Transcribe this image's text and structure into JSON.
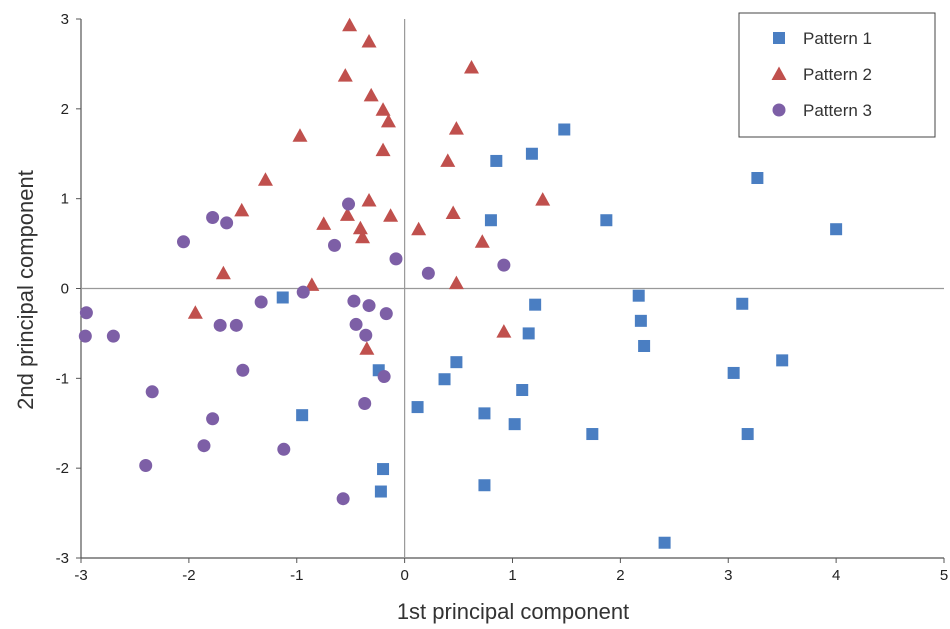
{
  "chart_data": {
    "type": "scatter",
    "title": "",
    "xlabel": "1st principal component",
    "ylabel": "2nd principal component",
    "xlim": [
      -3,
      5
    ],
    "ylim": [
      -3,
      3
    ],
    "xticks": [
      "-3",
      "-2",
      "-1",
      "0",
      "1",
      "2",
      "3",
      "4",
      "5"
    ],
    "yticks": [
      "3",
      "2",
      "1",
      "0",
      "-1",
      "-2",
      "-3"
    ],
    "grid": false,
    "zero_lines": true,
    "legend_position": "top-right",
    "series": [
      {
        "name": "Pattern 1",
        "marker": "square",
        "color": "#4a7ec2",
        "points": [
          [
            0.85,
            1.42
          ],
          [
            1.18,
            1.5
          ],
          [
            1.48,
            1.77
          ],
          [
            0.8,
            0.76
          ],
          [
            1.87,
            0.76
          ],
          [
            3.27,
            1.23
          ],
          [
            4.0,
            0.66
          ],
          [
            -1.13,
            -0.1
          ],
          [
            1.21,
            -0.18
          ],
          [
            2.17,
            -0.08
          ],
          [
            3.13,
            -0.17
          ],
          [
            2.19,
            -0.36
          ],
          [
            1.15,
            -0.5
          ],
          [
            2.22,
            -0.64
          ],
          [
            0.48,
            -0.82
          ],
          [
            3.5,
            -0.8
          ],
          [
            -0.24,
            -0.91
          ],
          [
            3.05,
            -0.94
          ],
          [
            0.37,
            -1.01
          ],
          [
            1.09,
            -1.13
          ],
          [
            0.12,
            -1.32
          ],
          [
            0.74,
            -1.39
          ],
          [
            1.02,
            -1.51
          ],
          [
            -0.95,
            -1.41
          ],
          [
            1.74,
            -1.62
          ],
          [
            3.18,
            -1.62
          ],
          [
            -0.2,
            -2.01
          ],
          [
            0.74,
            -2.19
          ],
          [
            -0.22,
            -2.26
          ],
          [
            2.41,
            -2.83
          ]
        ]
      },
      {
        "name": "Pattern 2",
        "marker": "triangle",
        "color": "#c0504d",
        "points": [
          [
            -0.51,
            2.93
          ],
          [
            -0.33,
            2.75
          ],
          [
            0.62,
            2.46
          ],
          [
            -0.55,
            2.37
          ],
          [
            -0.31,
            2.15
          ],
          [
            -0.2,
            1.99
          ],
          [
            -0.15,
            1.86
          ],
          [
            0.48,
            1.78
          ],
          [
            -0.97,
            1.7
          ],
          [
            -0.2,
            1.54
          ],
          [
            0.4,
            1.42
          ],
          [
            -1.29,
            1.21
          ],
          [
            1.28,
            0.99
          ],
          [
            -0.33,
            0.98
          ],
          [
            -1.51,
            0.87
          ],
          [
            -0.53,
            0.82
          ],
          [
            -0.13,
            0.81
          ],
          [
            0.45,
            0.84
          ],
          [
            -0.75,
            0.72
          ],
          [
            -0.41,
            0.67
          ],
          [
            -0.39,
            0.57
          ],
          [
            0.13,
            0.66
          ],
          [
            0.72,
            0.52
          ],
          [
            -1.68,
            0.17
          ],
          [
            -0.86,
            0.04
          ],
          [
            0.48,
            0.06
          ],
          [
            -1.94,
            -0.27
          ],
          [
            0.92,
            -0.48
          ],
          [
            -0.35,
            -0.67
          ]
        ]
      },
      {
        "name": "Pattern 3",
        "marker": "circle",
        "color": "#7d5fa6",
        "points": [
          [
            -0.52,
            0.94
          ],
          [
            -1.78,
            0.79
          ],
          [
            -1.65,
            0.73
          ],
          [
            -2.05,
            0.52
          ],
          [
            -0.65,
            0.48
          ],
          [
            -0.08,
            0.33
          ],
          [
            0.22,
            0.17
          ],
          [
            0.92,
            0.26
          ],
          [
            -0.94,
            -0.04
          ],
          [
            -1.33,
            -0.15
          ],
          [
            -0.47,
            -0.14
          ],
          [
            -0.33,
            -0.19
          ],
          [
            -0.17,
            -0.28
          ],
          [
            -2.95,
            -0.27
          ],
          [
            -1.71,
            -0.41
          ],
          [
            -1.56,
            -0.41
          ],
          [
            -0.45,
            -0.4
          ],
          [
            -0.36,
            -0.52
          ],
          [
            -2.96,
            -0.53
          ],
          [
            -2.7,
            -0.53
          ],
          [
            -1.5,
            -0.91
          ],
          [
            -0.19,
            -0.98
          ],
          [
            -2.34,
            -1.15
          ],
          [
            -0.37,
            -1.28
          ],
          [
            -1.78,
            -1.45
          ],
          [
            -1.86,
            -1.75
          ],
          [
            -1.12,
            -1.79
          ],
          [
            -2.4,
            -1.97
          ],
          [
            -0.57,
            -2.34
          ]
        ]
      }
    ]
  }
}
